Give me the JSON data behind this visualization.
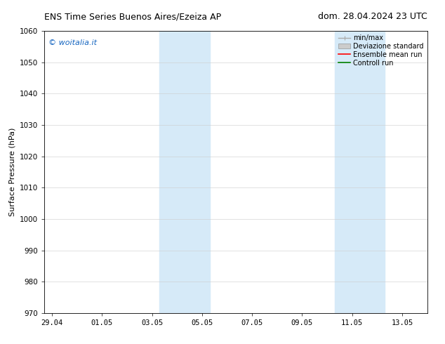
{
  "title_left": "ENS Time Series Buenos Aires/Ezeiza AP",
  "title_right": "dom. 28.04.2024 23 UTC",
  "ylabel": "Surface Pressure (hPa)",
  "ylim": [
    970,
    1060
  ],
  "yticks": [
    970,
    980,
    990,
    1000,
    1010,
    1020,
    1030,
    1040,
    1050,
    1060
  ],
  "xtick_labels": [
    "29.04",
    "01.05",
    "03.05",
    "05.05",
    "07.05",
    "09.05",
    "11.05",
    "13.05"
  ],
  "xtick_positions": [
    0,
    2,
    4,
    6,
    8,
    10,
    12,
    14
  ],
  "xmin": -0.3,
  "xmax": 15.0,
  "shaded_bands": [
    {
      "x_start": 4.3,
      "x_end": 6.3
    },
    {
      "x_start": 11.3,
      "x_end": 13.3
    }
  ],
  "shaded_color": "#d6eaf8",
  "background_color": "#ffffff",
  "watermark_text": "© woitalia.it",
  "watermark_color": "#1565c0",
  "legend_entries": [
    {
      "label": "min/max",
      "color": "#aaaaaa",
      "lw": 1.0,
      "linestyle": "-",
      "type": "errorbar"
    },
    {
      "label": "Deviazione standard",
      "color": "#cccccc",
      "lw": 5,
      "linestyle": "-",
      "type": "band"
    },
    {
      "label": "Ensemble mean run",
      "color": "red",
      "lw": 1.2,
      "linestyle": "-",
      "type": "line"
    },
    {
      "label": "Controll run",
      "color": "green",
      "lw": 1.2,
      "linestyle": "-",
      "type": "line"
    }
  ],
  "font_size_title": 9,
  "font_size_axis": 8,
  "font_size_tick": 7.5,
  "font_size_legend": 7,
  "font_size_watermark": 8
}
